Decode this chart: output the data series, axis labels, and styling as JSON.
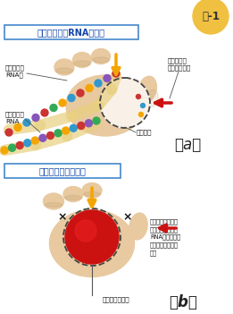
{
  "bg_color": "#ffffff",
  "panel_a_title": "（ウイルスのRNA複製）",
  "panel_b_title": "（酵素の不活性化）",
  "fig_label": "図-1",
  "fig_label_bg": "#f0c040",
  "hand_color": "#e8c9a0",
  "hand_shadow": "#c9a878",
  "active_dash_color": "#444444",
  "rna_bead_colors_1": [
    "#cc3333",
    "#f5a500",
    "#3399cc",
    "#8855bb",
    "#cc3333",
    "#33aa55",
    "#f5a500",
    "#3399cc",
    "#cc3333",
    "#f5a500",
    "#3399cc",
    "#8855bb",
    "#cc3333",
    "#33aa55"
  ],
  "rna_bead_colors_2": [
    "#f5a500",
    "#33aa55",
    "#cc3333",
    "#3399cc",
    "#f5a500",
    "#8855bb",
    "#cc3333",
    "#33aa55",
    "#f5a500",
    "#3399cc",
    "#cc3333",
    "#8855bb",
    "#33aa55",
    "#f5a500",
    "#cc3333",
    "#3399cc"
  ],
  "rna_strip_color": "#e8d080",
  "red_ball_color": "#cc1111",
  "orange_arrow": "#f5a500",
  "red_arrow": "#cc1111",
  "title_border": "#4488cc",
  "title_color": "#1144aa",
  "text_color": "#111111",
  "badge_stroke": "#cc6600"
}
